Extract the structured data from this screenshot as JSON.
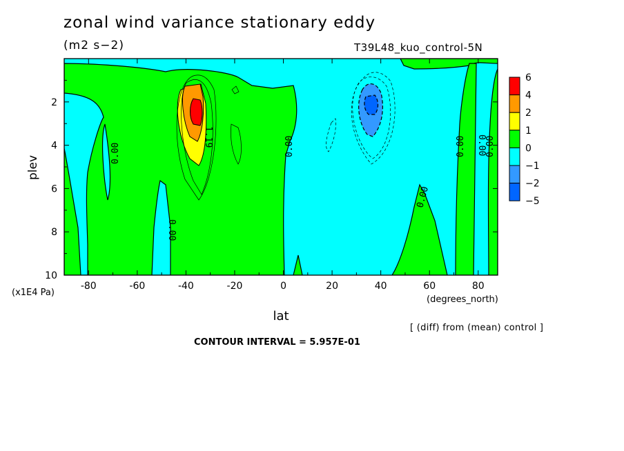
{
  "header": {
    "title": "zonal wind variance stationary eddy",
    "units": "(m2 s−2)",
    "run_name": "T39L48_kuo_control-5N"
  },
  "footer": {
    "note": "[ (diff) from (mean) control ]",
    "contour_interval": "CONTOUR INTERVAL = 5.957E-01"
  },
  "chart_data": {
    "type": "heatmap",
    "title": "zonal wind variance stationary eddy",
    "units": "(m2 s−2)",
    "xlabel": "lat",
    "x_units": "(degrees_north)",
    "ylabel": "plev",
    "y_units": "(x1E4 Pa)",
    "xlim": [
      -90,
      88
    ],
    "ylim": [
      10,
      0
    ],
    "x_ticks": [
      -80,
      -60,
      -40,
      -20,
      0,
      20,
      40,
      60,
      80
    ],
    "y_ticks": [
      2,
      4,
      6,
      8,
      10
    ],
    "colorbar": {
      "labels": [
        "6",
        "4",
        "2",
        "1",
        "0",
        "−1",
        "−2",
        "−5"
      ],
      "colors": [
        "#ff0000",
        "#ff9900",
        "#ffff00",
        "#00ff00",
        "#00ffff",
        "#3399ff",
        "#0066ff"
      ]
    },
    "contour_labels": [
      "0.00",
      "0.00",
      "0.00",
      "0.00",
      "0.00",
      "0.00",
      "0.00",
      "1.19"
    ],
    "features": [
      {
        "name": "positive maximum",
        "lat": -34,
        "plev": 2.5,
        "value": 5.0
      },
      {
        "name": "negative minimum",
        "lat": 37,
        "plev": 2.0,
        "value": -2.5
      }
    ]
  }
}
